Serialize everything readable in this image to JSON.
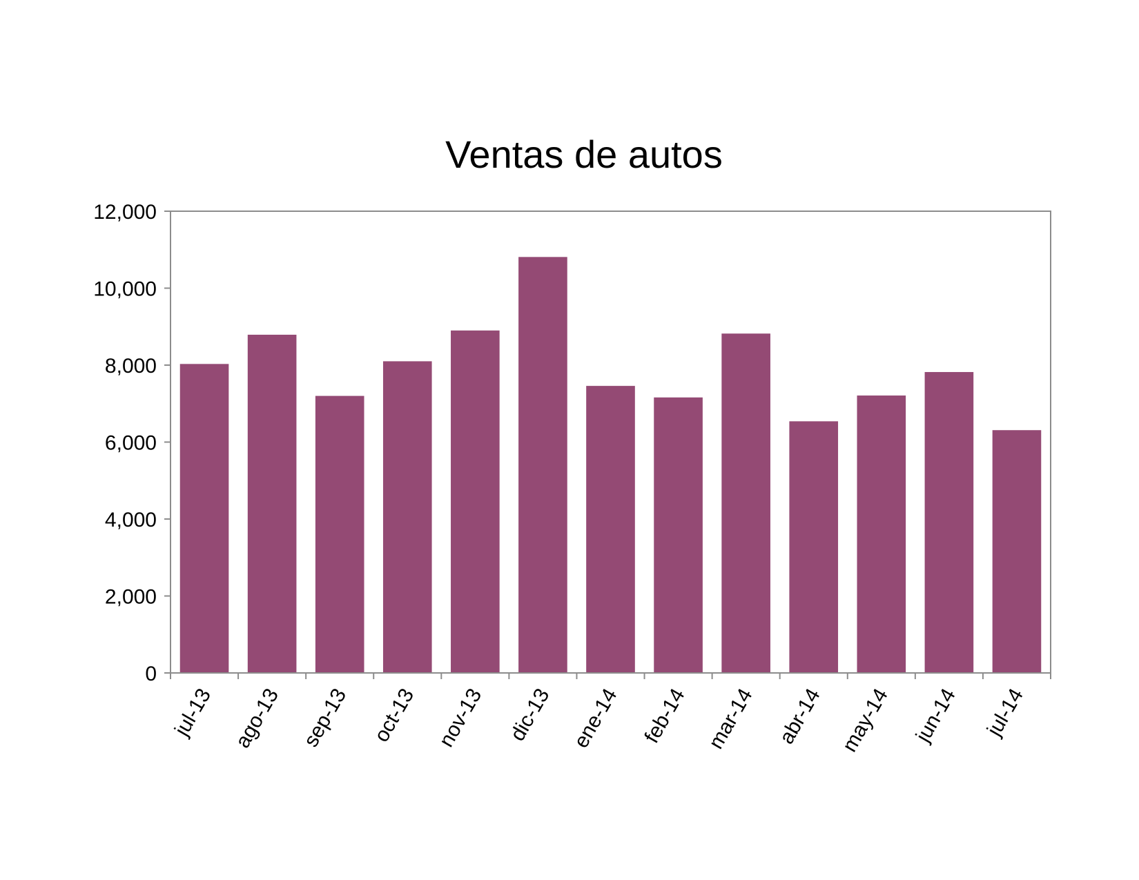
{
  "chart_data": {
    "type": "bar",
    "title": "Ventas de autos",
    "xlabel": "",
    "ylabel": "",
    "categories": [
      "jul-13",
      "ago-13",
      "sep-13",
      "oct-13",
      "nov-13",
      "dic-13",
      "ene-14",
      "feb-14",
      "mar-14",
      "abr-14",
      "may-14",
      "jun-14",
      "jul-14"
    ],
    "series": [
      {
        "values": [
          8030,
          8790,
          7200,
          8100,
          8900,
          10810,
          7460,
          7160,
          8820,
          6540,
          7210,
          7820,
          6310
        ],
        "color": "#944a74"
      }
    ],
    "ylim": [
      0,
      12000
    ],
    "yticks": [
      0,
      2000,
      4000,
      6000,
      8000,
      10000,
      12000
    ],
    "ytick_labels": [
      "0",
      "2,000",
      "4,000",
      "6,000",
      "8,000",
      "10,000",
      "12,000"
    ],
    "grid": false,
    "legend": "none"
  }
}
